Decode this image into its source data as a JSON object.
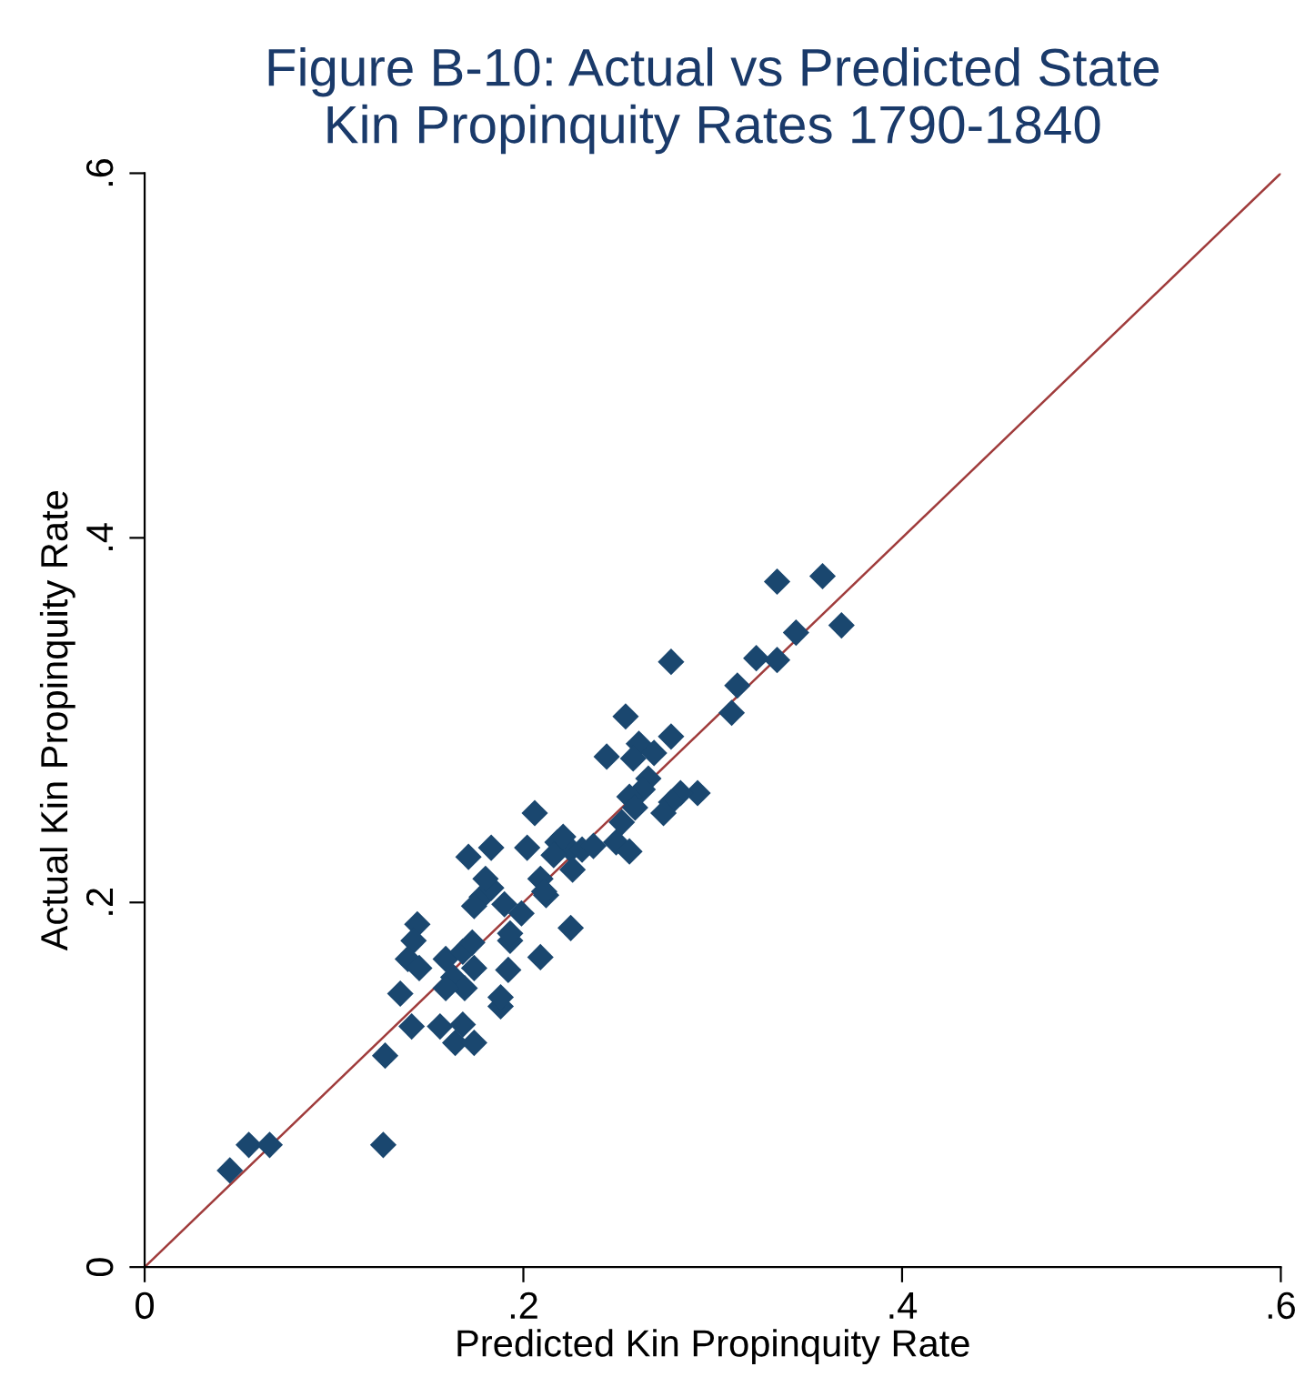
{
  "chart_data": {
    "type": "scatter",
    "title": "Figure B-10: Actual vs Predicted State\nKin Propinquity Rates 1790-1840",
    "xlabel": "Predicted Kin Propinquity Rate",
    "ylabel": "Actual Kin Propinquity Rate",
    "xlim": [
      0,
      0.6
    ],
    "ylim": [
      0,
      0.6
    ],
    "xticks": [
      {
        "value": 0,
        "label": "0"
      },
      {
        "value": 0.2,
        "label": ".2"
      },
      {
        "value": 0.4,
        "label": ".4"
      },
      {
        "value": 0.6,
        "label": ".6"
      }
    ],
    "yticks": [
      {
        "value": 0,
        "label": "0"
      },
      {
        "value": 0.2,
        "label": ".2"
      },
      {
        "value": 0.4,
        "label": ".4"
      },
      {
        "value": 0.6,
        "label": ".6"
      }
    ],
    "grid": false,
    "series": [
      {
        "marker": "diamond",
        "color": "#1a476f",
        "x": [
          0.045,
          0.055,
          0.066,
          0.126,
          0.127,
          0.135,
          0.141,
          0.156,
          0.164,
          0.174,
          0.168,
          0.188,
          0.144,
          0.142,
          0.139,
          0.145,
          0.159,
          0.163,
          0.168,
          0.173,
          0.174,
          0.169,
          0.159,
          0.193,
          0.192,
          0.209,
          0.171,
          0.183,
          0.202,
          0.206,
          0.178,
          0.183,
          0.19,
          0.174,
          0.18,
          0.199,
          0.209,
          0.212,
          0.218,
          0.225,
          0.225,
          0.334,
          0.358,
          0.368,
          0.344,
          0.323,
          0.334,
          0.278,
          0.313,
          0.31,
          0.254,
          0.244,
          0.278,
          0.261,
          0.269,
          0.258,
          0.266,
          0.263,
          0.292,
          0.283,
          0.278,
          0.274,
          0.256,
          0.259,
          0.252,
          0.249,
          0.256,
          0.221,
          0.231,
          0.216,
          0.226,
          0.237,
          0.211,
          0.193,
          0.188
        ],
        "values": [
          0.053,
          0.067,
          0.067,
          0.067,
          0.116,
          0.15,
          0.132,
          0.132,
          0.123,
          0.123,
          0.133,
          0.143,
          0.188,
          0.179,
          0.169,
          0.164,
          0.169,
          0.159,
          0.173,
          0.178,
          0.164,
          0.153,
          0.153,
          0.179,
          0.163,
          0.17,
          0.225,
          0.23,
          0.23,
          0.249,
          0.203,
          0.208,
          0.199,
          0.198,
          0.213,
          0.194,
          0.213,
          0.204,
          0.233,
          0.229,
          0.186,
          0.376,
          0.379,
          0.352,
          0.348,
          0.334,
          0.333,
          0.332,
          0.319,
          0.304,
          0.302,
          0.28,
          0.291,
          0.287,
          0.282,
          0.279,
          0.268,
          0.262,
          0.26,
          0.26,
          0.255,
          0.249,
          0.258,
          0.252,
          0.244,
          0.233,
          0.228,
          0.236,
          0.229,
          0.226,
          0.218,
          0.231,
          0.206,
          0.183,
          0.148
        ]
      },
      {
        "type": "line",
        "color": "#a03c3c",
        "x": [
          0,
          0.6
        ],
        "values": [
          0,
          0.6
        ],
        "line_style": "solid"
      }
    ]
  }
}
